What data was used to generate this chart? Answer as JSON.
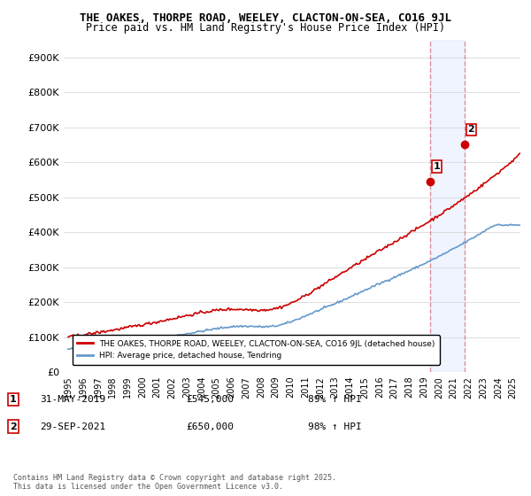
{
  "title_line1": "THE OAKES, THORPE ROAD, WEELEY, CLACTON-ON-SEA, CO16 9JL",
  "title_line2": "Price paid vs. HM Land Registry's House Price Index (HPI)",
  "ylim": [
    0,
    950000
  ],
  "yticks": [
    0,
    100000,
    200000,
    300000,
    400000,
    500000,
    600000,
    700000,
    800000,
    900000
  ],
  "ytick_labels": [
    "£0",
    "£100K",
    "£200K",
    "£300K",
    "£400K",
    "£500K",
    "£600K",
    "£700K",
    "£800K",
    "£900K"
  ],
  "xlim_start": 1995.0,
  "xlim_end": 2025.5,
  "hpi_color": "#6699cc",
  "price_color": "#cc0000",
  "sale1_x": 2019.417,
  "sale1_y": 545000,
  "sale2_x": 2021.75,
  "sale2_y": 650000,
  "vline_color": "#cc0000",
  "vline_alpha": 0.4,
  "shade_color": "#ccddff",
  "shade_alpha": 0.3,
  "legend_label_price": "THE OAKES, THORPE ROAD, WEELEY, CLACTON-ON-SEA, CO16 9JL (detached house)",
  "legend_label_hpi": "HPI: Average price, detached house, Tendring",
  "annotation1_label": "1",
  "annotation1_date": "31-MAY-2019",
  "annotation1_price": "£545,000",
  "annotation1_hpi": "89% ↑ HPI",
  "annotation2_label": "2",
  "annotation2_date": "29-SEP-2021",
  "annotation2_price": "£650,000",
  "annotation2_hpi": "98% ↑ HPI",
  "footnote": "Contains HM Land Registry data © Crown copyright and database right 2025.\nThis data is licensed under the Open Government Licence v3.0.",
  "bg_color": "#ffffff",
  "grid_color": "#dddddd"
}
